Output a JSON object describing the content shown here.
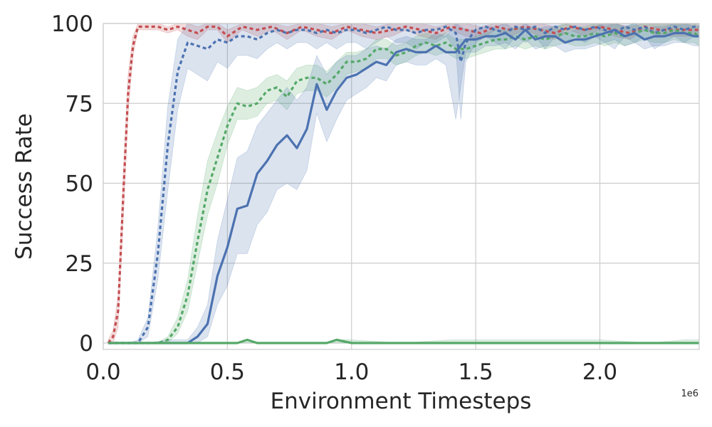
{
  "chart_data": {
    "type": "line",
    "title": "",
    "xlabel": "Environment Timesteps",
    "ylabel": "Success Rate",
    "x_offset_label": "1e6",
    "xlim": [
      0,
      2.4
    ],
    "ylim": [
      -2,
      100
    ],
    "xticks": [
      0.0,
      0.5,
      1.0,
      1.5,
      2.0
    ],
    "xtick_labels": [
      "0.0",
      "0.5",
      "1.0",
      "1.5",
      "2.0"
    ],
    "yticks": [
      0,
      25,
      50,
      75,
      100
    ],
    "ytick_labels": [
      "0",
      "25",
      "50",
      "75",
      "100"
    ],
    "grid": true,
    "legend": "none",
    "colors": {
      "red": "#c44e52",
      "blue": "#4c72b0",
      "green": "#55a868",
      "grid": "#cccccc",
      "text": "#262626"
    },
    "series": [
      {
        "color": "red",
        "style": "dashed",
        "x": [
          0.02,
          0.04,
          0.06,
          0.08,
          0.1,
          0.12,
          0.14,
          0.18,
          0.22,
          0.26,
          0.3,
          0.34,
          0.38,
          0.42,
          0.46,
          0.5,
          0.56,
          0.62,
          0.68,
          0.74,
          0.8,
          0.86,
          0.92,
          0.98,
          1.04,
          1.1,
          1.16,
          1.22,
          1.28,
          1.34,
          1.4,
          1.46,
          1.52,
          1.58,
          1.64,
          1.7,
          1.76,
          1.82,
          1.88,
          1.94,
          2.0,
          2.06,
          2.12,
          2.18,
          2.24,
          2.3,
          2.36,
          2.4
        ],
        "y": [
          0,
          2,
          10,
          45,
          78,
          93,
          99,
          99,
          99,
          98,
          99,
          98,
          97,
          99,
          99,
          96,
          99,
          98,
          99,
          97,
          99,
          98,
          97,
          99,
          98,
          97,
          98,
          99,
          98,
          97,
          99,
          98,
          97,
          99,
          98,
          99,
          98,
          97,
          99,
          98,
          99,
          98,
          97,
          99,
          98,
          98,
          98,
          98
        ],
        "lower": [
          0,
          0,
          5,
          38,
          72,
          90,
          98,
          98,
          98,
          97,
          98,
          96,
          95,
          98,
          98,
          94,
          98,
          96,
          98,
          95,
          98,
          96,
          95,
          98,
          96,
          95,
          96,
          98,
          96,
          95,
          98,
          96,
          95,
          98,
          96,
          98,
          96,
          95,
          98,
          96,
          98,
          96,
          95,
          98,
          96,
          96,
          96,
          96
        ],
        "upper": [
          1,
          4,
          15,
          52,
          84,
          96,
          100,
          100,
          100,
          99,
          100,
          100,
          99,
          100,
          100,
          98,
          100,
          100,
          100,
          99,
          100,
          100,
          99,
          100,
          100,
          99,
          100,
          100,
          100,
          99,
          100,
          100,
          99,
          100,
          100,
          100,
          100,
          99,
          100,
          100,
          100,
          100,
          99,
          100,
          100,
          100,
          100,
          100
        ]
      },
      {
        "color": "blue",
        "style": "dashed",
        "x": [
          0.02,
          0.06,
          0.1,
          0.14,
          0.18,
          0.22,
          0.26,
          0.3,
          0.34,
          0.38,
          0.42,
          0.46,
          0.5,
          0.54,
          0.58,
          0.62,
          0.66,
          0.7,
          0.74,
          0.78,
          0.82,
          0.86,
          0.9,
          0.94,
          0.98,
          1.02,
          1.06,
          1.1,
          1.14,
          1.18,
          1.22,
          1.26,
          1.3,
          1.34,
          1.38,
          1.42,
          1.44,
          1.46,
          1.5,
          1.54,
          1.58,
          1.62,
          1.66,
          1.7,
          1.74,
          1.78,
          1.82,
          1.86,
          1.9,
          1.94,
          1.98,
          2.02,
          2.06,
          2.1,
          2.14,
          2.18,
          2.22,
          2.26,
          2.3,
          2.34,
          2.38,
          2.4
        ],
        "y": [
          0,
          0,
          0,
          0,
          5,
          28,
          62,
          85,
          94,
          93,
          92,
          95,
          94,
          96,
          96,
          95,
          97,
          98,
          97,
          98,
          98,
          97,
          98,
          97,
          98,
          98,
          97,
          98,
          99,
          98,
          98,
          97,
          98,
          98,
          99,
          97,
          88,
          94,
          98,
          99,
          98,
          97,
          99,
          98,
          99,
          97,
          99,
          98,
          99,
          98,
          99,
          98,
          97,
          99,
          98,
          99,
          97,
          98,
          99,
          98,
          99,
          99
        ],
        "lower": [
          0,
          0,
          0,
          0,
          2,
          20,
          48,
          73,
          86,
          84,
          82,
          88,
          86,
          90,
          90,
          89,
          92,
          94,
          92,
          94,
          94,
          92,
          94,
          92,
          94,
          94,
          92,
          94,
          96,
          94,
          94,
          92,
          94,
          94,
          96,
          92,
          70,
          88,
          94,
          96,
          94,
          92,
          96,
          94,
          96,
          92,
          96,
          94,
          96,
          94,
          96,
          94,
          92,
          96,
          94,
          96,
          92,
          94,
          96,
          94,
          96,
          96
        ],
        "upper": [
          0,
          0,
          0,
          1,
          8,
          36,
          74,
          95,
          100,
          100,
          100,
          100,
          100,
          100,
          100,
          100,
          100,
          100,
          100,
          100,
          100,
          100,
          100,
          100,
          100,
          100,
          100,
          100,
          100,
          100,
          100,
          100,
          100,
          100,
          100,
          100,
          100,
          100,
          100,
          100,
          100,
          100,
          100,
          100,
          100,
          100,
          100,
          100,
          100,
          100,
          100,
          100,
          100,
          100,
          100,
          100,
          100,
          100,
          100,
          100,
          100,
          100
        ]
      },
      {
        "color": "green",
        "style": "dashed",
        "x": [
          0.02,
          0.06,
          0.1,
          0.14,
          0.18,
          0.22,
          0.26,
          0.3,
          0.34,
          0.38,
          0.42,
          0.46,
          0.5,
          0.54,
          0.58,
          0.62,
          0.66,
          0.7,
          0.74,
          0.78,
          0.82,
          0.86,
          0.9,
          0.94,
          0.98,
          1.02,
          1.06,
          1.1,
          1.14,
          1.18,
          1.22,
          1.26,
          1.3,
          1.34,
          1.38,
          1.42,
          1.46,
          1.5,
          1.54,
          1.58,
          1.62,
          1.66,
          1.7,
          1.74,
          1.78,
          1.82,
          1.86,
          1.9,
          1.94,
          1.98,
          2.02,
          2.06,
          2.1,
          2.14,
          2.18,
          2.22,
          2.26,
          2.3,
          2.34,
          2.38,
          2.4
        ],
        "y": [
          0,
          0,
          0,
          0,
          0,
          0,
          1,
          5,
          15,
          32,
          48,
          58,
          68,
          75,
          74,
          75,
          79,
          80,
          77,
          82,
          83,
          83,
          81,
          84,
          88,
          88,
          89,
          92,
          92,
          90,
          91,
          93,
          94,
          93,
          94,
          92,
          92,
          93,
          94,
          95,
          95,
          96,
          95,
          96,
          95,
          96,
          97,
          96,
          96,
          97,
          96,
          97,
          96,
          97,
          98,
          97,
          97,
          98,
          97,
          97,
          96
        ],
        "lower": [
          0,
          0,
          0,
          0,
          0,
          0,
          0,
          3,
          10,
          25,
          40,
          50,
          62,
          70,
          70,
          71,
          75,
          76,
          73,
          78,
          79,
          79,
          77,
          80,
          84,
          85,
          86,
          89,
          89,
          87,
          88,
          90,
          91,
          90,
          91,
          89,
          89,
          90,
          91,
          92,
          92,
          93,
          92,
          93,
          92,
          93,
          94,
          93,
          93,
          94,
          93,
          94,
          93,
          94,
          95,
          94,
          94,
          95,
          94,
          94,
          93
        ],
        "upper": [
          0,
          0,
          0,
          0,
          0,
          0,
          2,
          8,
          20,
          40,
          57,
          66,
          74,
          80,
          79,
          80,
          83,
          84,
          82,
          86,
          87,
          87,
          85,
          88,
          91,
          91,
          92,
          95,
          95,
          93,
          94,
          96,
          97,
          96,
          97,
          95,
          95,
          96,
          97,
          98,
          98,
          99,
          98,
          99,
          98,
          99,
          100,
          99,
          99,
          100,
          99,
          100,
          99,
          100,
          100,
          100,
          100,
          100,
          100,
          100,
          99
        ]
      },
      {
        "color": "blue",
        "style": "solid",
        "x": [
          0.02,
          0.1,
          0.18,
          0.26,
          0.3,
          0.34,
          0.38,
          0.42,
          0.46,
          0.5,
          0.54,
          0.58,
          0.62,
          0.66,
          0.7,
          0.74,
          0.78,
          0.82,
          0.86,
          0.9,
          0.94,
          0.98,
          1.02,
          1.06,
          1.1,
          1.14,
          1.18,
          1.22,
          1.26,
          1.3,
          1.34,
          1.38,
          1.42,
          1.46,
          1.5,
          1.54,
          1.58,
          1.62,
          1.66,
          1.7,
          1.74,
          1.78,
          1.82,
          1.86,
          1.9,
          1.94,
          1.98,
          2.02,
          2.06,
          2.1,
          2.14,
          2.18,
          2.22,
          2.26,
          2.3,
          2.34,
          2.38,
          2.4
        ],
        "y": [
          0,
          0,
          0,
          0,
          0,
          0,
          2,
          6,
          21,
          30,
          42,
          43,
          53,
          57,
          62,
          65,
          61,
          67,
          81,
          73,
          79,
          83,
          84,
          86,
          88,
          87,
          91,
          92,
          91,
          91,
          93,
          91,
          91,
          95,
          95,
          96,
          96,
          97,
          95,
          98,
          95,
          96,
          96,
          94,
          95,
          95,
          96,
          97,
          98,
          96,
          97,
          95,
          96,
          96,
          97,
          97,
          96,
          96
        ],
        "lower": [
          0,
          0,
          0,
          0,
          0,
          0,
          0,
          2,
          12,
          18,
          28,
          28,
          37,
          41,
          48,
          50,
          48,
          54,
          72,
          63,
          70,
          76,
          78,
          80,
          83,
          82,
          87,
          88,
          87,
          87,
          89,
          87,
          70,
          91,
          91,
          93,
          93,
          94,
          92,
          95,
          92,
          93,
          93,
          91,
          92,
          92,
          93,
          94,
          95,
          93,
          94,
          92,
          93,
          93,
          94,
          94,
          93,
          93
        ],
        "upper": [
          0,
          0,
          0,
          1,
          1,
          1,
          5,
          12,
          32,
          45,
          58,
          60,
          68,
          72,
          76,
          80,
          76,
          80,
          90,
          84,
          88,
          90,
          90,
          92,
          93,
          92,
          95,
          96,
          95,
          95,
          97,
          96,
          100,
          98,
          98,
          99,
          99,
          100,
          98,
          100,
          98,
          99,
          99,
          97,
          98,
          98,
          99,
          100,
          100,
          99,
          100,
          98,
          99,
          99,
          100,
          100,
          99,
          99
        ]
      },
      {
        "color": "green",
        "style": "solid",
        "x": [
          0.02,
          0.2,
          0.4,
          0.54,
          0.58,
          0.62,
          0.8,
          0.9,
          0.94,
          1.0,
          1.2,
          1.4,
          1.6,
          1.8,
          2.0,
          2.2,
          2.34,
          2.4
        ],
        "y": [
          0,
          0,
          0,
          0,
          1,
          0,
          0,
          0,
          1,
          0,
          0,
          0,
          0,
          0,
          0,
          0,
          0,
          0
        ],
        "lower": [
          0,
          0,
          0,
          0,
          0,
          0,
          0,
          0,
          0,
          0,
          0,
          0,
          0,
          0,
          0,
          0,
          0,
          0
        ],
        "upper": [
          0,
          0,
          0,
          0,
          1,
          0,
          0,
          0,
          1,
          1,
          0,
          1,
          1,
          1,
          1,
          0,
          1,
          1
        ]
      }
    ]
  }
}
